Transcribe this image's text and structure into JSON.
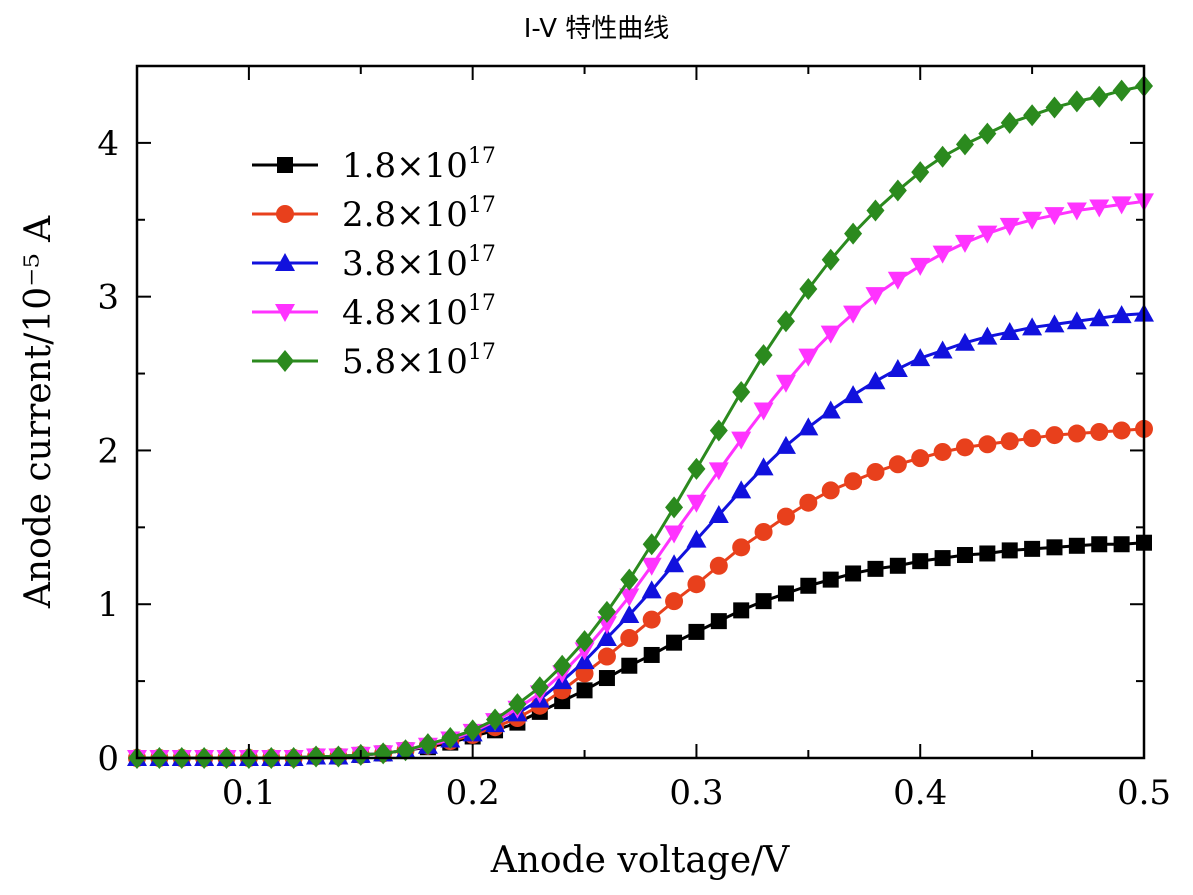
{
  "chart_data": {
    "type": "line",
    "title": "I-V 特性曲线",
    "xlabel": "Anode voltage/V",
    "ylabel": "Anode current/10⁻⁵ A",
    "xlim": [
      0.05,
      0.5
    ],
    "ylim": [
      0,
      4.5
    ],
    "xticks": [
      "0.1",
      "0.2",
      "0.3",
      "0.4",
      "0.5"
    ],
    "yticks": [
      "0",
      "1",
      "2",
      "3",
      "4"
    ],
    "grid": false,
    "legend_position": "top-left",
    "x": [
      0.05,
      0.06,
      0.07,
      0.08,
      0.09,
      0.1,
      0.11,
      0.12,
      0.13,
      0.14,
      0.15,
      0.16,
      0.17,
      0.18,
      0.19,
      0.2,
      0.21,
      0.22,
      0.23,
      0.24,
      0.25,
      0.26,
      0.27,
      0.28,
      0.29,
      0.3,
      0.31,
      0.32,
      0.33,
      0.34,
      0.35,
      0.36,
      0.37,
      0.38,
      0.39,
      0.4,
      0.41,
      0.42,
      0.43,
      0.44,
      0.45,
      0.46,
      0.47,
      0.48,
      0.49,
      0.5
    ],
    "series": [
      {
        "name_base": "1.8×10",
        "name_exp": "17",
        "color": "#000000",
        "marker": "square",
        "values": [
          0,
          0,
          0,
          0,
          0,
          0,
          0,
          0,
          0.01,
          0.01,
          0.02,
          0.03,
          0.05,
          0.07,
          0.1,
          0.14,
          0.18,
          0.23,
          0.3,
          0.37,
          0.44,
          0.52,
          0.6,
          0.67,
          0.75,
          0.82,
          0.89,
          0.96,
          1.02,
          1.07,
          1.12,
          1.16,
          1.2,
          1.23,
          1.25,
          1.28,
          1.3,
          1.32,
          1.33,
          1.35,
          1.36,
          1.37,
          1.38,
          1.39,
          1.39,
          1.4
        ]
      },
      {
        "name_base": "2.8×10",
        "name_exp": "17",
        "color": "#e8401c",
        "marker": "circle",
        "values": [
          0,
          0,
          0,
          0,
          0,
          0,
          0,
          0,
          0.01,
          0.01,
          0.02,
          0.03,
          0.05,
          0.08,
          0.11,
          0.15,
          0.2,
          0.26,
          0.34,
          0.44,
          0.55,
          0.66,
          0.78,
          0.9,
          1.02,
          1.13,
          1.25,
          1.37,
          1.47,
          1.57,
          1.66,
          1.74,
          1.8,
          1.86,
          1.91,
          1.95,
          1.99,
          2.02,
          2.04,
          2.06,
          2.08,
          2.1,
          2.11,
          2.12,
          2.13,
          2.14
        ]
      },
      {
        "name_base": "3.8×10",
        "name_exp": "17",
        "color": "#1111dd",
        "marker": "triangle-up",
        "values": [
          0,
          0,
          0,
          0,
          0,
          0,
          0,
          0,
          0.01,
          0.01,
          0.02,
          0.03,
          0.05,
          0.08,
          0.12,
          0.16,
          0.22,
          0.29,
          0.38,
          0.5,
          0.63,
          0.78,
          0.93,
          1.09,
          1.26,
          1.42,
          1.58,
          1.74,
          1.89,
          2.03,
          2.15,
          2.26,
          2.36,
          2.45,
          2.53,
          2.6,
          2.65,
          2.7,
          2.74,
          2.77,
          2.8,
          2.82,
          2.84,
          2.86,
          2.88,
          2.89
        ]
      },
      {
        "name_base": "4.8×10",
        "name_exp": "17",
        "color": "#ff33ff",
        "marker": "triangle-down",
        "values": [
          0,
          0,
          0,
          0,
          0,
          0,
          0,
          0,
          0.01,
          0.01,
          0.02,
          0.03,
          0.05,
          0.08,
          0.12,
          0.17,
          0.24,
          0.32,
          0.42,
          0.55,
          0.7,
          0.87,
          1.05,
          1.25,
          1.46,
          1.66,
          1.87,
          2.07,
          2.26,
          2.44,
          2.61,
          2.76,
          2.89,
          3.01,
          3.11,
          3.2,
          3.28,
          3.35,
          3.41,
          3.46,
          3.5,
          3.53,
          3.56,
          3.58,
          3.6,
          3.62
        ]
      },
      {
        "name_base": "5.8×10",
        "name_exp": "17",
        "color": "#2b8a1e",
        "marker": "diamond",
        "values": [
          0,
          0,
          0,
          0,
          0,
          0,
          0,
          0,
          0.01,
          0.01,
          0.02,
          0.03,
          0.05,
          0.09,
          0.13,
          0.18,
          0.25,
          0.35,
          0.46,
          0.6,
          0.76,
          0.95,
          1.16,
          1.39,
          1.63,
          1.88,
          2.13,
          2.38,
          2.62,
          2.84,
          3.05,
          3.24,
          3.41,
          3.56,
          3.69,
          3.81,
          3.91,
          3.99,
          4.06,
          4.13,
          4.18,
          4.23,
          4.27,
          4.3,
          4.34,
          4.37
        ]
      }
    ]
  }
}
